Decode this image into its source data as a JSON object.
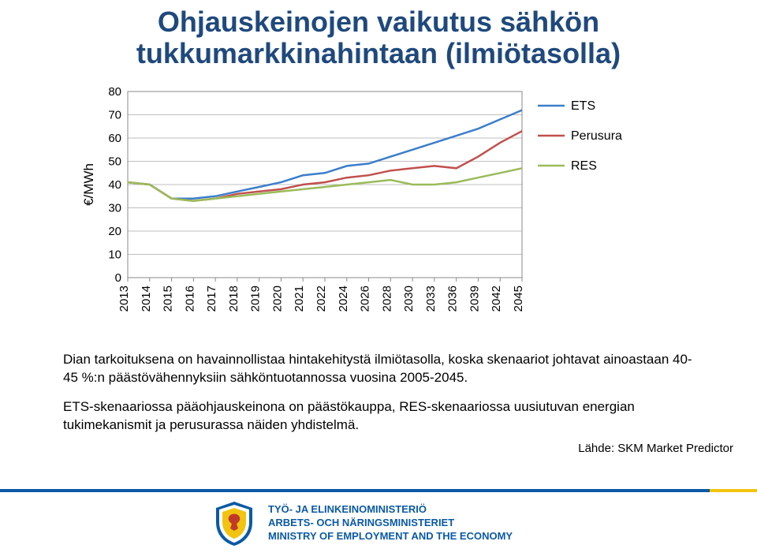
{
  "title": {
    "line1": "Ohjauskeinojen vaikutus sähkön",
    "line2": "tukkumarkkinahintaan (ilmiötasolla)"
  },
  "chart": {
    "type": "line",
    "ylabel": "€/MWh",
    "ylim": [
      0,
      80
    ],
    "ytick_step": 10,
    "xcats": [
      "2013",
      "2014",
      "2015",
      "2016",
      "2017",
      "2018",
      "2019",
      "2020",
      "2021",
      "2022",
      "2024",
      "2026",
      "2028",
      "2030",
      "2033",
      "2036",
      "2039",
      "2042",
      "2045"
    ],
    "series": [
      {
        "name": "ETS",
        "color": "#3b7ecb",
        "width": 2.5,
        "values": [
          41,
          40,
          34,
          34,
          35,
          37,
          39,
          41,
          44,
          45,
          48,
          49,
          52,
          55,
          58,
          61,
          64,
          68,
          72
        ]
      },
      {
        "name": "Perusura",
        "color": "#c0504d",
        "width": 2.5,
        "values": [
          41,
          40,
          34,
          33,
          34,
          36,
          37,
          38,
          40,
          41,
          43,
          44,
          46,
          47,
          48,
          47,
          52,
          58,
          63
        ]
      },
      {
        "name": "RES",
        "color": "#9bbb59",
        "width": 2.5,
        "values": [
          41,
          40,
          34,
          33,
          34,
          35,
          36,
          37,
          38,
          39,
          40,
          41,
          42,
          40,
          40,
          41,
          43,
          45,
          47
        ]
      }
    ],
    "plot_border_color": "#8a8a8a",
    "grid_color": "#bfbfbf",
    "axis_fontsize": 15,
    "label_fontsize": 17,
    "legend_fontsize": 16
  },
  "body": {
    "p1": "Dian tarkoituksena on havainnollistaa hintakehitystä ilmiötasolla, koska skenaariot johtavat ainoastaan 40-45 %:n päästövähennyksiin sähköntuotannossa vuosina 2005-2045.",
    "p2": "ETS-skenaariossa pääohjauskeinona on päästökauppa, RES-skenaariossa uusiutuvan energian tukimekanismit ja perusurassa näiden yhdistelmä."
  },
  "source": "Lähde: SKM Market Predictor",
  "footer": {
    "line_blue": "#0b5aa4",
    "line_yellow": "#f1c40f",
    "ministry_l1": "TYÖ- JA ELINKEINOMINISTERIÖ",
    "ministry_l2": "ARBETS- OCH NÄRINGSMINISTERIET",
    "ministry_l3": "MINISTRY OF EMPLOYMENT AND THE ECONOMY"
  }
}
